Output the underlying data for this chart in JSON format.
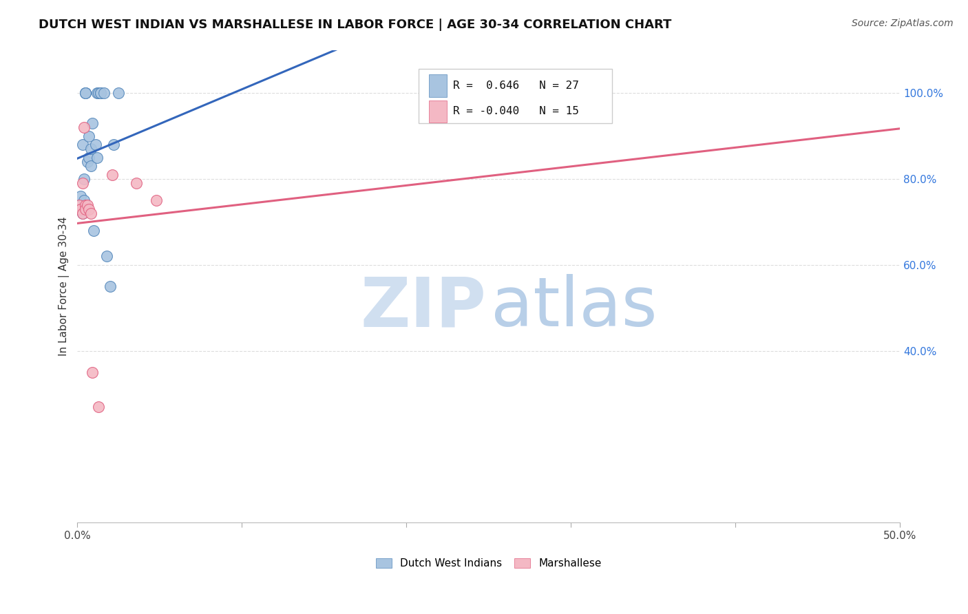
{
  "title": "DUTCH WEST INDIAN VS MARSHALLESE IN LABOR FORCE | AGE 30-34 CORRELATION CHART",
  "source": "Source: ZipAtlas.com",
  "ylabel": "In Labor Force | Age 30-34",
  "legend_label1": "Dutch West Indians",
  "legend_label2": "Marshallese",
  "R_blue": 0.646,
  "N_blue": 27,
  "R_pink": -0.04,
  "N_pink": 15,
  "blue_color": "#a8c4e0",
  "pink_color": "#f4b8c4",
  "blue_edge_color": "#5588bb",
  "pink_edge_color": "#e06080",
  "blue_line_color": "#3366bb",
  "pink_line_color": "#e06080",
  "watermark_zip_color": "#d0dff0",
  "watermark_atlas_color": "#b8cfe8",
  "blue_x": [
    0.001,
    0.002,
    0.003,
    0.003,
    0.004,
    0.004,
    0.005,
    0.005,
    0.005,
    0.006,
    0.007,
    0.007,
    0.008,
    0.008,
    0.009,
    0.01,
    0.011,
    0.012,
    0.012,
    0.013,
    0.014,
    0.014,
    0.016,
    0.018,
    0.02,
    0.022,
    0.025
  ],
  "blue_y": [
    0.73,
    0.76,
    0.72,
    0.88,
    0.75,
    0.8,
    1.0,
    1.0,
    1.0,
    0.84,
    0.9,
    0.85,
    0.87,
    0.83,
    0.93,
    0.68,
    0.88,
    0.85,
    1.0,
    1.0,
    1.0,
    1.0,
    1.0,
    0.62,
    0.55,
    0.88,
    1.0
  ],
  "pink_x": [
    0.001,
    0.002,
    0.003,
    0.003,
    0.004,
    0.005,
    0.005,
    0.006,
    0.007,
    0.008,
    0.009,
    0.013,
    0.021,
    0.036,
    0.048
  ],
  "pink_y": [
    0.74,
    0.73,
    0.72,
    0.79,
    0.92,
    0.74,
    0.73,
    0.74,
    0.73,
    0.72,
    0.35,
    0.27,
    0.81,
    0.79,
    0.75
  ],
  "xlim": [
    0.0,
    0.5
  ],
  "ylim": [
    0.0,
    1.1
  ],
  "ytick_vals": [
    1.0,
    0.8,
    0.6,
    0.4
  ],
  "ytick_labels": [
    "100.0%",
    "80.0%",
    "60.0%",
    "40.0%"
  ],
  "xtick_vals": [
    0.0,
    0.1,
    0.2,
    0.3,
    0.4,
    0.5
  ],
  "xtick_labels": [
    "0.0%",
    "",
    "",
    "",
    "",
    "50.0%"
  ],
  "background_color": "#ffffff",
  "grid_color": "#dddddd",
  "title_fontsize": 13,
  "source_fontsize": 10,
  "axis_fontsize": 11,
  "marker_size": 130
}
